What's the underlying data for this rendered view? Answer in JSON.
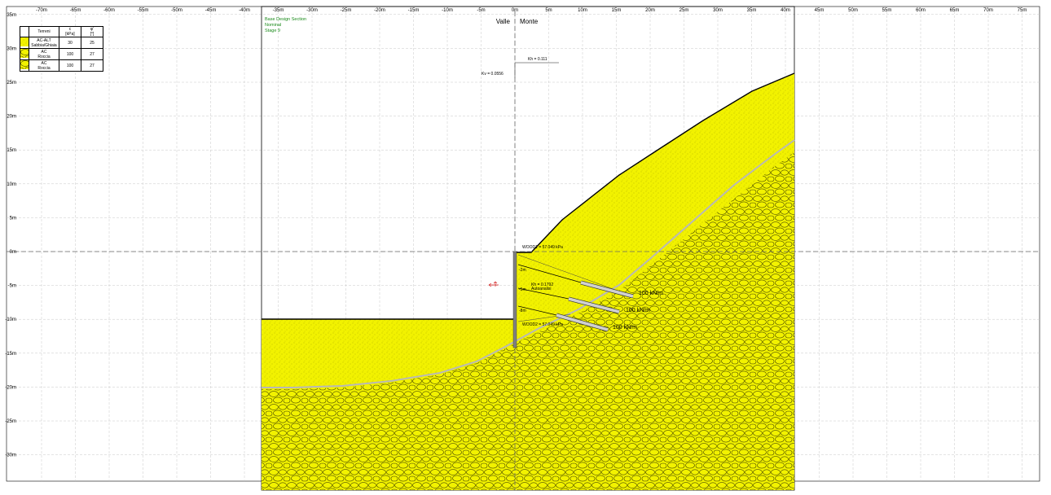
{
  "x_ticks": [
    "-70m",
    "-65m",
    "-60m",
    "-55m",
    "-50m",
    "-45m",
    "-40m",
    "-35m",
    "-30m",
    "-25m",
    "-20m",
    "-15m",
    "-10m",
    "-5m",
    "0m",
    "5m",
    "10m",
    "15m",
    "20m",
    "25m",
    "30m",
    "35m",
    "40m",
    "45m",
    "50m",
    "55m",
    "60m",
    "65m",
    "70m",
    "75m"
  ],
  "y_ticks": [
    "35m",
    "30m",
    "25m",
    "20m",
    "15m",
    "10m",
    "5m",
    "0m",
    "-5m",
    "-10m",
    "-15m",
    "-20m",
    "-25m",
    "-30m"
  ],
  "section_info": [
    "Base Design Section",
    "Nominal",
    "Stage 9"
  ],
  "side_labels": {
    "left": "Valle",
    "right": "Monte"
  },
  "seismic": {
    "kh_top": "Kh = 0.111",
    "kv": "Kv = 0.0556",
    "kh_wall": "Kh = 0.1792",
    "kh_wall_sub": "Autoanalisi"
  },
  "wall_markers": [
    "-2m",
    "-5m",
    "-8m"
  ],
  "loads": {
    "wood1": "WOOD1 = 57.049 kPa",
    "wood2": "WOOD2 = 57.049 kPa"
  },
  "anchors": [
    "100 kN/m",
    "100 kN/m",
    "100 kN/m"
  ],
  "legend": {
    "headers": [
      "Terreni",
      "c\n[kPa]",
      "φ'\n[°]"
    ],
    "rows": [
      {
        "name": "AC-ALT\nSabbia/Ghiaia",
        "c": "30",
        "phi": "25",
        "pattern": "sand"
      },
      {
        "name": "AC\nRoccia",
        "c": "100",
        "phi": "27",
        "pattern": "rock"
      },
      {
        "name": "AC\nRoccia",
        "c": "100",
        "phi": "27",
        "pattern": "rock"
      }
    ]
  },
  "colors": {
    "soil": "#f2f200",
    "grid": "#c8c8c8",
    "green_text": "#1a8a1a",
    "wall": "#808080"
  }
}
